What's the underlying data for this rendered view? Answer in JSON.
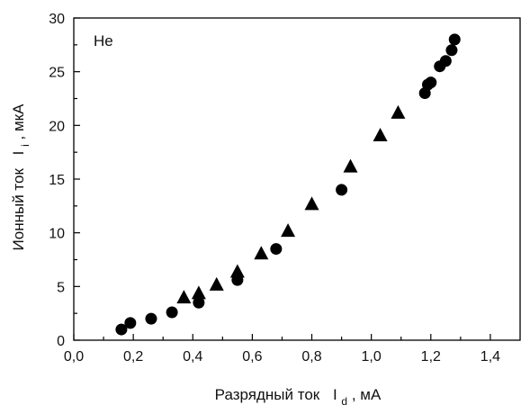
{
  "chart_data": {
    "type": "scatter",
    "xlabel": "Разрядный ток",
    "xlabel_symbol": "I",
    "xlabel_subscript": "d",
    "xlabel_unit": ",   мА",
    "ylabel": "Ионный ток",
    "ylabel_symbol": "I",
    "ylabel_subscript": "i",
    "ylabel_unit": ",  мкА",
    "annotation": "He",
    "xlim": [
      0.0,
      1.5
    ],
    "ylim": [
      0,
      30
    ],
    "x_ticks": [
      0.0,
      0.2,
      0.4,
      0.6,
      0.8,
      1.0,
      1.2,
      1.4
    ],
    "x_tick_labels": [
      "0,0",
      "0,2",
      "0,4",
      "0,6",
      "0,8",
      "1,0",
      "1,2",
      "1,4"
    ],
    "y_ticks": [
      0,
      5,
      10,
      15,
      20,
      25,
      30
    ],
    "y_tick_labels": [
      "0",
      "5",
      "10",
      "15",
      "20",
      "25",
      "30"
    ],
    "grid": false,
    "legend": "none",
    "series": [
      {
        "marker": "circle",
        "color": "#000000",
        "x": [
          0.16,
          0.19,
          0.26,
          0.33,
          0.42,
          0.55,
          0.68,
          0.9,
          1.18,
          1.19,
          1.2,
          1.23,
          1.25,
          1.27,
          1.28
        ],
        "y": [
          1.0,
          1.6,
          2.0,
          2.6,
          3.5,
          5.6,
          8.5,
          14.0,
          23.0,
          23.8,
          24.0,
          25.5,
          26.0,
          27.0,
          28.0
        ]
      },
      {
        "marker": "triangle",
        "color": "#000000",
        "x": [
          0.37,
          0.42,
          0.48,
          0.55,
          0.63,
          0.72,
          0.8,
          0.93,
          1.03,
          1.09
        ],
        "y": [
          3.9,
          4.3,
          5.1,
          6.3,
          8.0,
          10.1,
          12.6,
          16.1,
          19.0,
          21.1
        ]
      }
    ]
  }
}
